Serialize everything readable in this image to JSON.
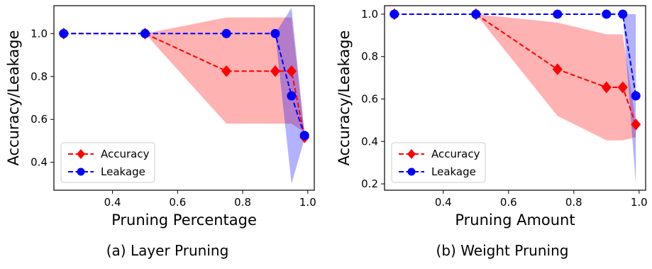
{
  "chart_data": [
    {
      "type": "line",
      "caption": "(a) Layer Pruning",
      "xlabel": "Pruning Percentage",
      "ylabel": "Accuracy/Leakage",
      "xlim": [
        0.22,
        1.02
      ],
      "ylim": [
        0.27,
        1.13
      ],
      "xticks": [
        0.4,
        0.6,
        0.8,
        1.0
      ],
      "xtick_labels": [
        "0.4",
        "0.6",
        "0.8",
        "1.0"
      ],
      "yticks": [
        0.4,
        0.6,
        0.8,
        1.0
      ],
      "ytick_labels": [
        "0.4",
        "0.6",
        "0.8",
        "1.0"
      ],
      "grid": false,
      "legend_position": "lower-left",
      "series": [
        {
          "name": "Accuracy",
          "color": "#ff0000",
          "marker": "diamond",
          "linestyle": "dashed",
          "x": [
            0.25,
            0.5,
            0.75,
            0.9,
            0.95,
            0.99
          ],
          "y": [
            1.0,
            1.0,
            0.825,
            0.825,
            0.825,
            0.517
          ],
          "band_lower": [
            1.0,
            1.0,
            0.58,
            0.58,
            0.58,
            0.54
          ],
          "band_upper": [
            1.0,
            1.0,
            1.075,
            1.075,
            1.075,
            0.53
          ]
        },
        {
          "name": "Leakage",
          "color": "#0000ff",
          "marker": "circle",
          "linestyle": "dashed",
          "x": [
            0.25,
            0.5,
            0.75,
            0.9,
            0.95,
            0.99
          ],
          "y": [
            1.0,
            1.0,
            1.0,
            1.0,
            0.71,
            0.525
          ],
          "band_lower": [
            1.0,
            1.0,
            1.0,
            1.0,
            0.3,
            0.51
          ],
          "band_upper": [
            1.0,
            1.0,
            1.0,
            1.0,
            1.12,
            0.54
          ]
        }
      ]
    },
    {
      "type": "line",
      "caption": "(b) Weight Pruning",
      "xlabel": "Pruning Amount",
      "ylabel": "Accuracy/Leakage",
      "xlim": [
        0.22,
        1.02
      ],
      "ylim": [
        0.17,
        1.04
      ],
      "xticks": [
        0.4,
        0.6,
        0.8,
        1.0
      ],
      "xtick_labels": [
        "0.4",
        "0.6",
        "0.8",
        "1.0"
      ],
      "yticks": [
        0.2,
        0.4,
        0.6,
        0.8,
        1.0
      ],
      "ytick_labels": [
        "0.2",
        "0.4",
        "0.6",
        "0.8",
        "1.0"
      ],
      "grid": false,
      "legend_position": "lower-left",
      "series": [
        {
          "name": "Accuracy",
          "color": "#ff0000",
          "marker": "diamond",
          "linestyle": "dashed",
          "x": [
            0.25,
            0.5,
            0.75,
            0.9,
            0.95,
            0.99
          ],
          "y": [
            1.0,
            1.0,
            0.74,
            0.655,
            0.655,
            0.48
          ],
          "band_lower": [
            1.0,
            1.0,
            0.52,
            0.405,
            0.405,
            0.42
          ],
          "band_upper": [
            1.0,
            1.0,
            0.96,
            0.905,
            0.905,
            0.49
          ]
        },
        {
          "name": "Leakage",
          "color": "#0000ff",
          "marker": "circle",
          "linestyle": "dashed",
          "x": [
            0.25,
            0.5,
            0.75,
            0.9,
            0.95,
            0.99
          ],
          "y": [
            1.0,
            1.0,
            1.0,
            1.0,
            1.0,
            0.615
          ],
          "band_lower": [
            1.0,
            1.0,
            1.0,
            1.0,
            1.0,
            0.2
          ],
          "band_upper": [
            1.0,
            1.0,
            1.0,
            1.0,
            1.0,
            1.0
          ]
        }
      ]
    }
  ]
}
